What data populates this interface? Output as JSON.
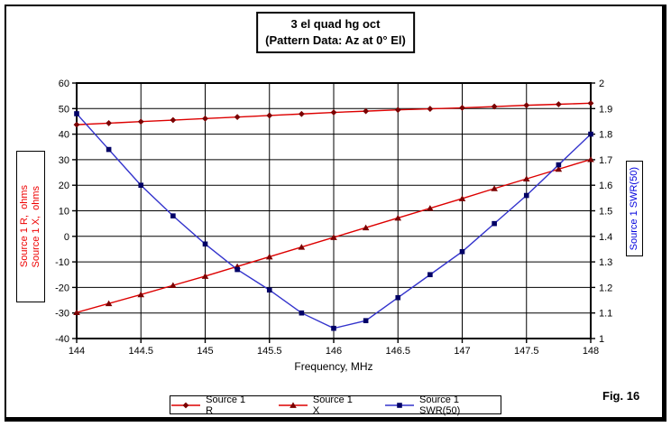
{
  "title": {
    "line1": "3 el quad hg oct",
    "line2": "(Pattern Data: Az at 0° El)"
  },
  "axes": {
    "left_label_r": "Source 1 R,  ohms",
    "left_label_x": "Source 1 X,  ohms",
    "right_label": "Source 1 SWR(50)",
    "x_label": "Frequency, MHz"
  },
  "fig_label": "Fig. 16",
  "colors": {
    "axis": "#000000",
    "grid": "#000000",
    "r_line": "#dd0000",
    "r_marker": "#7b0000",
    "x_line": "#dd0000",
    "x_marker": "#7b0000",
    "swr_line": "#3333cc",
    "swr_marker": "#000066",
    "left_label_text": "#ee0000",
    "right_label_text": "#0000dd"
  },
  "chart_data": {
    "type": "line",
    "title": "3 el quad hg oct (Pattern Data: Az at 0° El)",
    "xlabel": "Frequency, MHz",
    "ylabel_left": "Source 1 R, ohms / Source 1 X, ohms",
    "ylabel_right": "Source 1 SWR(50)",
    "grid": true,
    "legend_position": "bottom",
    "x_axis": {
      "min": 144,
      "max": 148,
      "tick_step": 0.5,
      "ticks": [
        "144",
        "144.5",
        "145",
        "145.5",
        "146",
        "146.5",
        "147",
        "147.5",
        "148"
      ]
    },
    "left_axis": {
      "min": -40,
      "max": 60,
      "tick_step": 10,
      "ticks": [
        "60",
        "50",
        "40",
        "30",
        "20",
        "10",
        "0",
        "-10",
        "-20",
        "-30",
        "-40"
      ]
    },
    "right_axis": {
      "min": 1,
      "max": 2,
      "tick_step": 0.1,
      "ticks": [
        "2",
        "1.9",
        "1.8",
        "1.7",
        "1.6",
        "1.5",
        "1.4",
        "1.3",
        "1.2",
        "1.1",
        "1"
      ]
    },
    "x": [
      144,
      144.25,
      144.5,
      144.75,
      145,
      145.25,
      145.5,
      145.75,
      146,
      146.25,
      146.5,
      146.75,
      147,
      147.25,
      147.5,
      147.75,
      148
    ],
    "series": [
      {
        "name": "Source 1 R",
        "axis": "left",
        "marker": "diamond",
        "color": "#dd0000",
        "marker_color": "#7b0000",
        "values": [
          43.7,
          44.3,
          44.9,
          45.5,
          46.1,
          46.7,
          47.3,
          47.9,
          48.5,
          49.0,
          49.5,
          49.9,
          50.3,
          50.8,
          51.3,
          51.7,
          52.1
        ]
      },
      {
        "name": "Source 1 X",
        "axis": "left",
        "marker": "triangle",
        "color": "#dd0000",
        "marker_color": "#7b0000",
        "values": [
          -29.8,
          -26.3,
          -22.8,
          -19.2,
          -15.6,
          -11.8,
          -8.0,
          -4.2,
          -0.4,
          3.4,
          7.2,
          11.0,
          14.8,
          18.7,
          22.5,
          26.3,
          30.1
        ]
      },
      {
        "name": "Source 1 SWR(50)",
        "axis": "right",
        "marker": "square",
        "color": "#3333cc",
        "marker_color": "#000066",
        "values": [
          1.88,
          1.74,
          1.6,
          1.48,
          1.37,
          1.27,
          1.19,
          1.1,
          1.04,
          1.07,
          1.16,
          1.25,
          1.34,
          1.45,
          1.56,
          1.68,
          1.8
        ]
      }
    ]
  }
}
